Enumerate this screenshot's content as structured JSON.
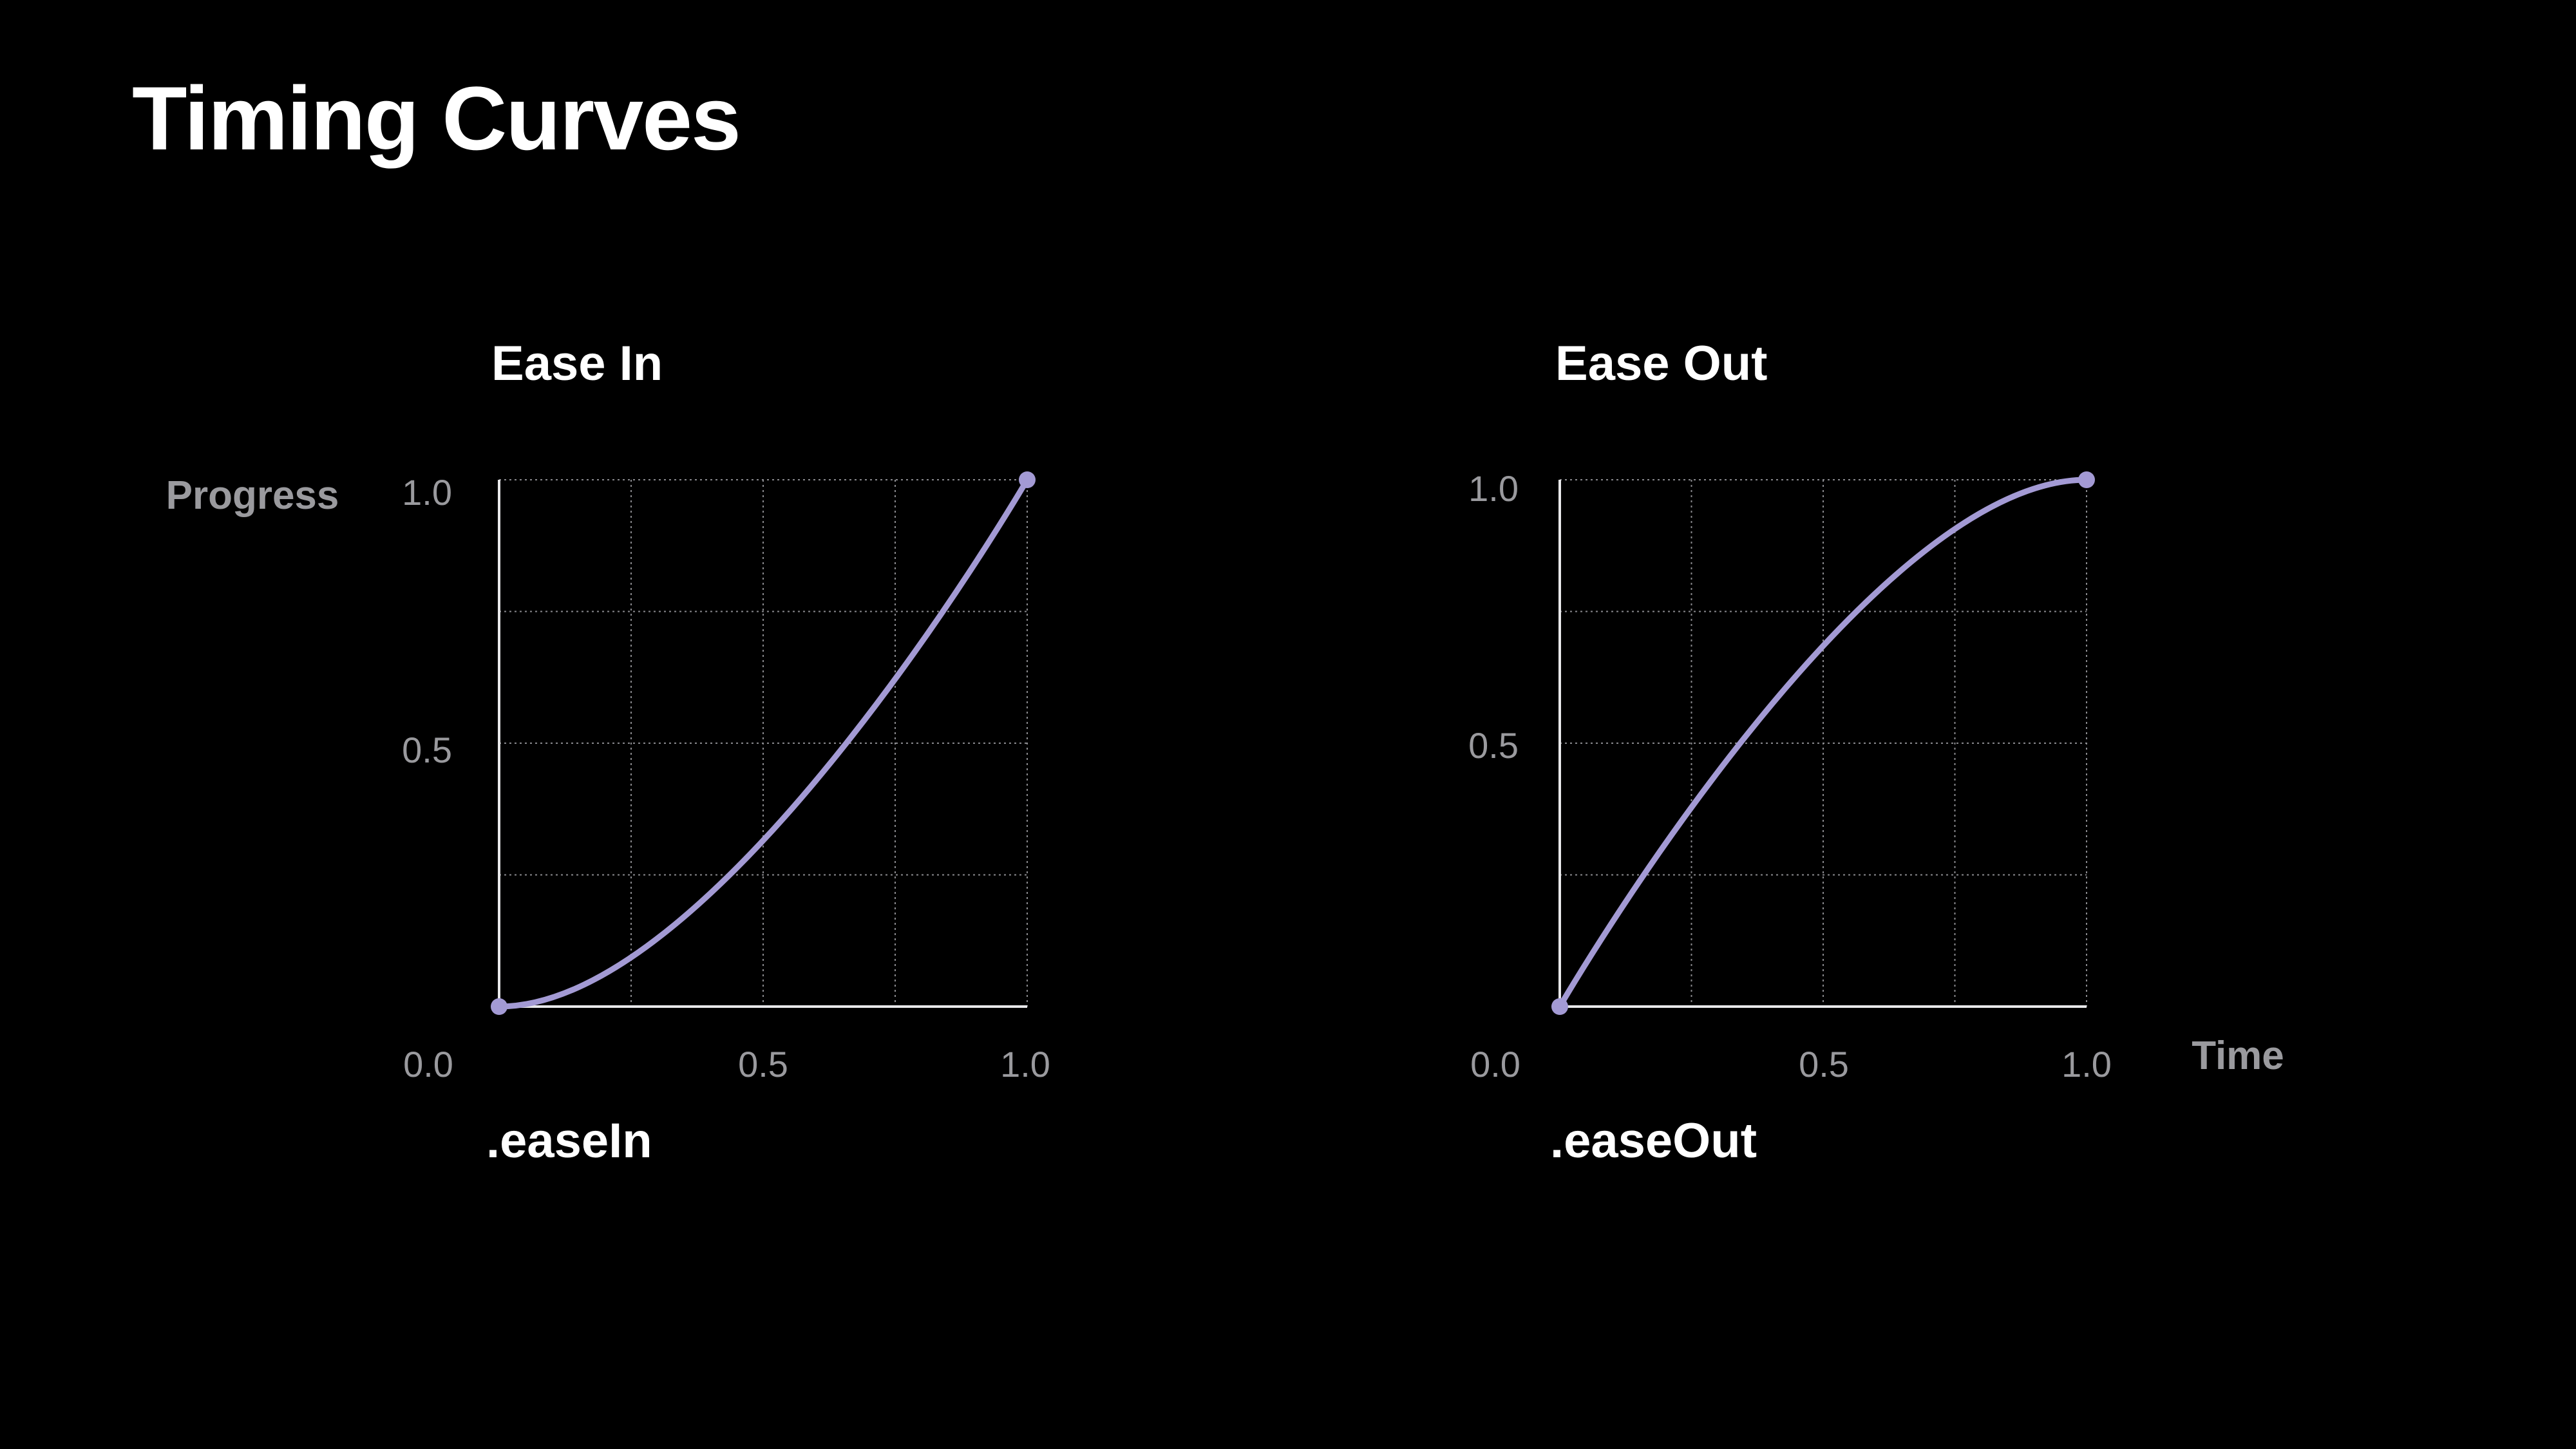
{
  "page": {
    "title": "Timing Curves"
  },
  "colors": {
    "background": "#000000",
    "curve": "#a39ad4",
    "text": "#ffffff",
    "tick_text": "#9a9a9e"
  },
  "chart_data": [
    {
      "type": "line",
      "title": "Ease In",
      "caption": ".easeIn",
      "ylabel": "Progress",
      "xlabel": "",
      "xlim": [
        0,
        1
      ],
      "ylim": [
        0,
        1
      ],
      "x_ticks": [
        "0.5",
        "1.0"
      ],
      "y_ticks": [
        "0.5",
        "1.0"
      ],
      "origin_label": "0.0",
      "grid": true,
      "grid_step": 0.25,
      "bezier_control_points": [
        [
          0,
          0
        ],
        [
          0.42,
          0
        ],
        [
          1,
          1
        ],
        [
          1,
          1
        ]
      ],
      "endpoints": [
        [
          0,
          0
        ],
        [
          1,
          1
        ]
      ]
    },
    {
      "type": "line",
      "title": "Ease Out",
      "caption": ".easeOut",
      "ylabel": "",
      "xlabel": "Time",
      "xlim": [
        0,
        1
      ],
      "ylim": [
        0,
        1
      ],
      "x_ticks": [
        "0.5",
        "1.0"
      ],
      "y_ticks": [
        "0.5",
        "1.0"
      ],
      "origin_label": "0.0",
      "grid": true,
      "grid_step": 0.25,
      "bezier_control_points": [
        [
          0,
          0
        ],
        [
          0,
          0
        ],
        [
          0.58,
          1
        ],
        [
          1,
          1
        ]
      ],
      "endpoints": [
        [
          0,
          0
        ],
        [
          1,
          1
        ]
      ]
    }
  ]
}
